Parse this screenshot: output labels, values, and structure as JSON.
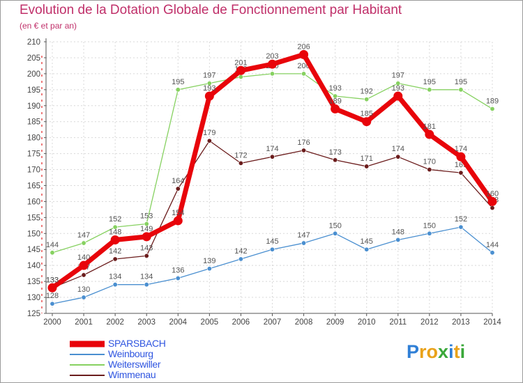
{
  "title": "Evolution de la Dotation Globale de Fonctionnement par Habitant",
  "subtitle": "(en € et par an)",
  "logo": {
    "letters": [
      "P",
      "r",
      "o",
      "x",
      "i",
      "t",
      "i"
    ],
    "colors": [
      "#2f7fd6",
      "#e9a21a",
      "#e9a21a",
      "#3aa83a",
      "#2f7fd6",
      "#e9a21a",
      "#3aa83a"
    ]
  },
  "chart_data": {
    "type": "line",
    "x": [
      "2000",
      "2001",
      "2002",
      "2003",
      "2004",
      "2005",
      "2006",
      "2007",
      "2008",
      "2009",
      "2010",
      "2011",
      "2012",
      "2013",
      "2014"
    ],
    "ylim": [
      125,
      210
    ],
    "yticks": [
      125,
      130,
      135,
      140,
      145,
      150,
      155,
      160,
      165,
      170,
      175,
      180,
      185,
      190,
      195,
      200,
      205,
      210
    ],
    "grid": true,
    "legend_position": "bottom-left",
    "series": [
      {
        "name": "Weinbourg",
        "color": "#4a8fd0",
        "width": 1.3,
        "marker": 3.2,
        "values": [
          128,
          130,
          134,
          134,
          136,
          139,
          142,
          145,
          147,
          150,
          145,
          148,
          150,
          152,
          144
        ],
        "labels": [
          "128",
          "130",
          "134",
          "134",
          "136",
          "139",
          "142",
          "145",
          "147",
          "150",
          "145",
          "148",
          "150",
          "152",
          "144"
        ]
      },
      {
        "name": "Weiterswiller",
        "color": "#86d160",
        "width": 1.3,
        "marker": 3.2,
        "values": [
          144,
          147,
          152,
          153,
          195,
          197,
          199,
          200,
          200,
          193,
          192,
          197,
          195,
          195,
          189
        ],
        "labels": [
          "144",
          "147",
          "152",
          "153",
          "195",
          "197",
          "199",
          "200",
          "200",
          "193",
          "192",
          "197",
          "195",
          "195",
          "189"
        ]
      },
      {
        "name": "Wimmenau",
        "color": "#6b1c1c",
        "width": 1.3,
        "marker": 3.2,
        "values": [
          133,
          137,
          142,
          143,
          164,
          179,
          172,
          174,
          176,
          173,
          171,
          174,
          170,
          169,
          158
        ],
        "labels": [
          "133",
          "137",
          "142",
          "143",
          "164",
          "179",
          "172",
          "174",
          "176",
          "173",
          "171",
          "174",
          "170",
          "169",
          "158"
        ]
      },
      {
        "name": "SPARSBACH",
        "color": "#e8040a",
        "width": 7,
        "marker": 6.5,
        "values": [
          133,
          140,
          148,
          149,
          154,
          193,
          201,
          203,
          206,
          189,
          185,
          193,
          181,
          174,
          160
        ],
        "labels": [
          "133",
          "140",
          "148",
          "149",
          "154",
          "193",
          "201",
          "203",
          "206",
          "189",
          "185",
          "193",
          "181",
          "174",
          "160"
        ]
      }
    ]
  }
}
